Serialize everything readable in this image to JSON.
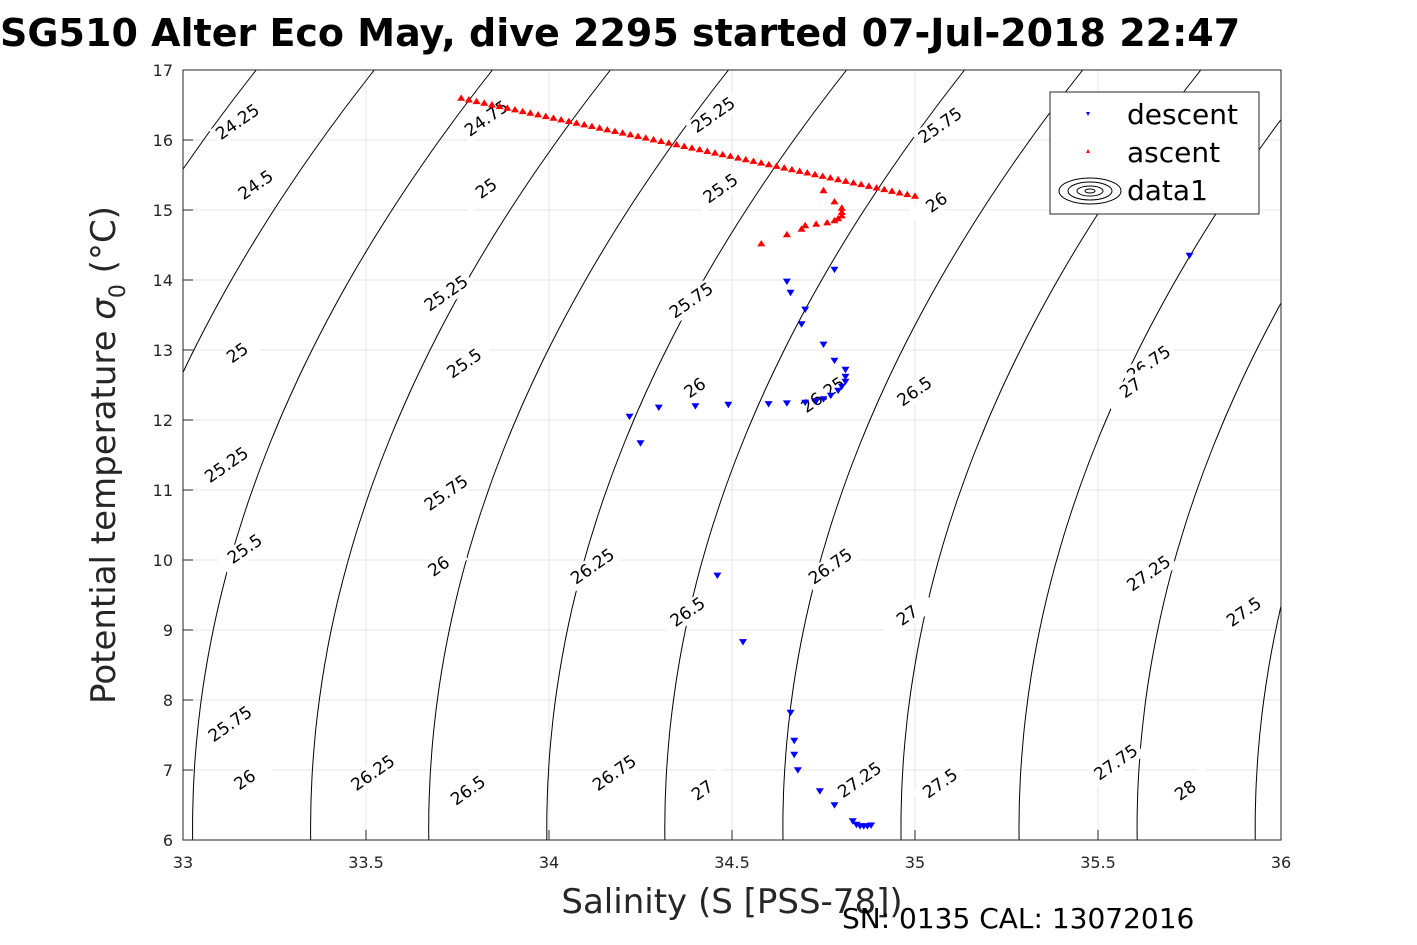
{
  "title": "SG510 Alter Eco May, dive 2295 started 07-Jul-2018 22:47",
  "footer": "SN: 0135  CAL: 13072016",
  "chart_data": {
    "type": "scatter",
    "xlabel": "Salinity (S [PSS-78])",
    "ylabel_main": "Potential temperature ",
    "ylabel_symbol": "σ",
    "ylabel_sub": "0",
    "ylabel_unit": " (°C)",
    "xlim": [
      33,
      36
    ],
    "ylim": [
      6,
      17
    ],
    "xticks": [
      "33",
      "33.5",
      "34",
      "34.5",
      "35",
      "35.5",
      "36"
    ],
    "yticks": [
      "6",
      "7",
      "8",
      "9",
      "10",
      "11",
      "12",
      "13",
      "14",
      "15",
      "16",
      "17"
    ],
    "grid": true,
    "legend": {
      "placement": "top-right",
      "entries": [
        "descent",
        "ascent",
        "data1"
      ]
    },
    "colors": {
      "descent": "#0000ff",
      "ascent": "#ff0000",
      "contour": "#000000",
      "grid": "#e6e6e6"
    },
    "contour_levels": [
      24.25,
      24.5,
      24.75,
      25,
      25.25,
      25.5,
      25.75,
      26,
      26.25,
      26.5,
      26.75,
      27,
      27.25,
      27.5,
      27.75,
      28
    ],
    "contour_labels": [
      {
        "text": "24.25",
        "x": 33.15,
        "y": 16.25
      },
      {
        "text": "24.5",
        "x": 33.2,
        "y": 15.35
      },
      {
        "text": "25",
        "x": 33.15,
        "y": 12.95
      },
      {
        "text": "25.25",
        "x": 33.12,
        "y": 11.35
      },
      {
        "text": "25.5",
        "x": 33.17,
        "y": 10.15
      },
      {
        "text": "25.75",
        "x": 33.13,
        "y": 7.65
      },
      {
        "text": "26",
        "x": 33.17,
        "y": 6.85
      },
      {
        "text": "24.75",
        "x": 33.83,
        "y": 16.3
      },
      {
        "text": "25",
        "x": 33.83,
        "y": 15.3
      },
      {
        "text": "25.25",
        "x": 33.72,
        "y": 13.8
      },
      {
        "text": "25.5",
        "x": 33.77,
        "y": 12.8
      },
      {
        "text": "25.75",
        "x": 33.72,
        "y": 10.95
      },
      {
        "text": "26",
        "x": 33.7,
        "y": 9.9
      },
      {
        "text": "26.25",
        "x": 33.52,
        "y": 6.95
      },
      {
        "text": "26.5",
        "x": 33.78,
        "y": 6.7
      },
      {
        "text": "25.25",
        "x": 34.45,
        "y": 16.35
      },
      {
        "text": "25.5",
        "x": 34.47,
        "y": 15.3
      },
      {
        "text": "25.75",
        "x": 34.39,
        "y": 13.7
      },
      {
        "text": "26",
        "x": 34.4,
        "y": 12.45
      },
      {
        "text": "26.25",
        "x": 34.12,
        "y": 9.9
      },
      {
        "text": "26.5",
        "x": 34.38,
        "y": 9.25
      },
      {
        "text": "26.75",
        "x": 34.18,
        "y": 6.95
      },
      {
        "text": "27",
        "x": 34.42,
        "y": 6.7
      },
      {
        "text": "25.75",
        "x": 35.07,
        "y": 16.2
      },
      {
        "text": "26",
        "x": 35.06,
        "y": 15.1
      },
      {
        "text": "26.25",
        "x": 34.75,
        "y": 12.35
      },
      {
        "text": "26.5",
        "x": 35.0,
        "y": 12.4
      },
      {
        "text": "26.75",
        "x": 34.77,
        "y": 9.9
      },
      {
        "text": "27",
        "x": 34.98,
        "y": 9.2
      },
      {
        "text": "27.25",
        "x": 34.85,
        "y": 6.85
      },
      {
        "text": "27.5",
        "x": 35.07,
        "y": 6.8
      },
      {
        "text": "26.75",
        "x": 35.64,
        "y": 12.8
      },
      {
        "text": "27",
        "x": 35.59,
        "y": 12.45
      },
      {
        "text": "27.25",
        "x": 35.64,
        "y": 9.8
      },
      {
        "text": "27.5",
        "x": 35.9,
        "y": 9.25
      },
      {
        "text": "27.75",
        "x": 35.55,
        "y": 7.1
      },
      {
        "text": "28",
        "x": 35.74,
        "y": 6.7
      }
    ],
    "series": [
      {
        "name": "descent",
        "marker": "triangle-down",
        "points": [
          [
            35.75,
            14.35
          ],
          [
            34.78,
            14.15
          ],
          [
            34.65,
            13.98
          ],
          [
            34.66,
            13.82
          ],
          [
            34.7,
            13.58
          ],
          [
            34.69,
            13.37
          ],
          [
            34.75,
            13.08
          ],
          [
            34.78,
            12.85
          ],
          [
            34.81,
            12.72
          ],
          [
            34.81,
            12.62
          ],
          [
            34.81,
            12.55
          ],
          [
            34.8,
            12.48
          ],
          [
            34.79,
            12.42
          ],
          [
            34.77,
            12.35
          ],
          [
            34.75,
            12.3
          ],
          [
            34.73,
            12.27
          ],
          [
            34.7,
            12.25
          ],
          [
            34.65,
            12.24
          ],
          [
            34.6,
            12.23
          ],
          [
            34.49,
            12.22
          ],
          [
            34.4,
            12.2
          ],
          [
            34.3,
            12.18
          ],
          [
            34.22,
            12.05
          ],
          [
            34.25,
            11.67
          ],
          [
            34.46,
            9.78
          ],
          [
            34.53,
            8.83
          ],
          [
            34.66,
            7.82
          ],
          [
            34.67,
            7.42
          ],
          [
            34.67,
            7.22
          ],
          [
            34.68,
            7.0
          ],
          [
            34.74,
            6.7
          ],
          [
            34.78,
            6.5
          ],
          [
            34.83,
            6.27
          ],
          [
            34.84,
            6.22
          ],
          [
            34.85,
            6.2
          ],
          [
            34.86,
            6.2
          ],
          [
            34.87,
            6.2
          ],
          [
            34.88,
            6.21
          ]
        ]
      },
      {
        "name": "ascent",
        "marker": "triangle-up",
        "line_from": [
          33.76,
          16.6
        ],
        "line_to": [
          35.0,
          15.2
        ],
        "line_count": 60,
        "points": [
          [
            34.58,
            14.52
          ],
          [
            34.65,
            14.65
          ],
          [
            34.69,
            14.73
          ],
          [
            34.7,
            14.78
          ],
          [
            34.73,
            14.8
          ],
          [
            34.76,
            14.82
          ],
          [
            34.78,
            14.85
          ],
          [
            34.79,
            14.88
          ],
          [
            34.8,
            14.92
          ],
          [
            34.8,
            14.97
          ],
          [
            34.8,
            15.03
          ],
          [
            34.78,
            15.12
          ],
          [
            34.75,
            15.28
          ]
        ]
      }
    ]
  }
}
